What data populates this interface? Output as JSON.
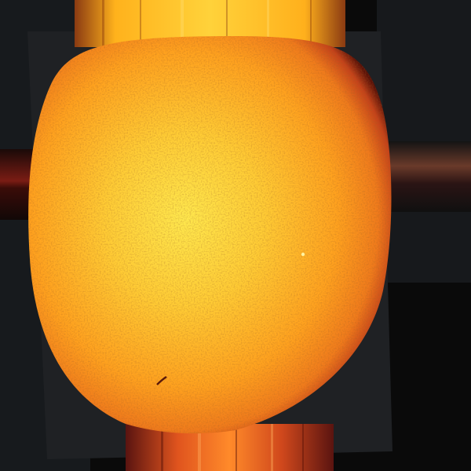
{
  "image": {
    "subject": "solar disc",
    "colors": {
      "background": "#0a0a0a",
      "panel": "#1d1f22",
      "disc_core": "#ffe14a",
      "disc_mid": "#ffa51f",
      "disc_edge": "#c4421a",
      "limb": "#5a1208",
      "streak_top": "#ffb21c",
      "streak_bottom": "#e0541e",
      "left_band": "#7a1c14",
      "right_band": "#6a3a2a",
      "spot": "#5a1a0a"
    }
  }
}
